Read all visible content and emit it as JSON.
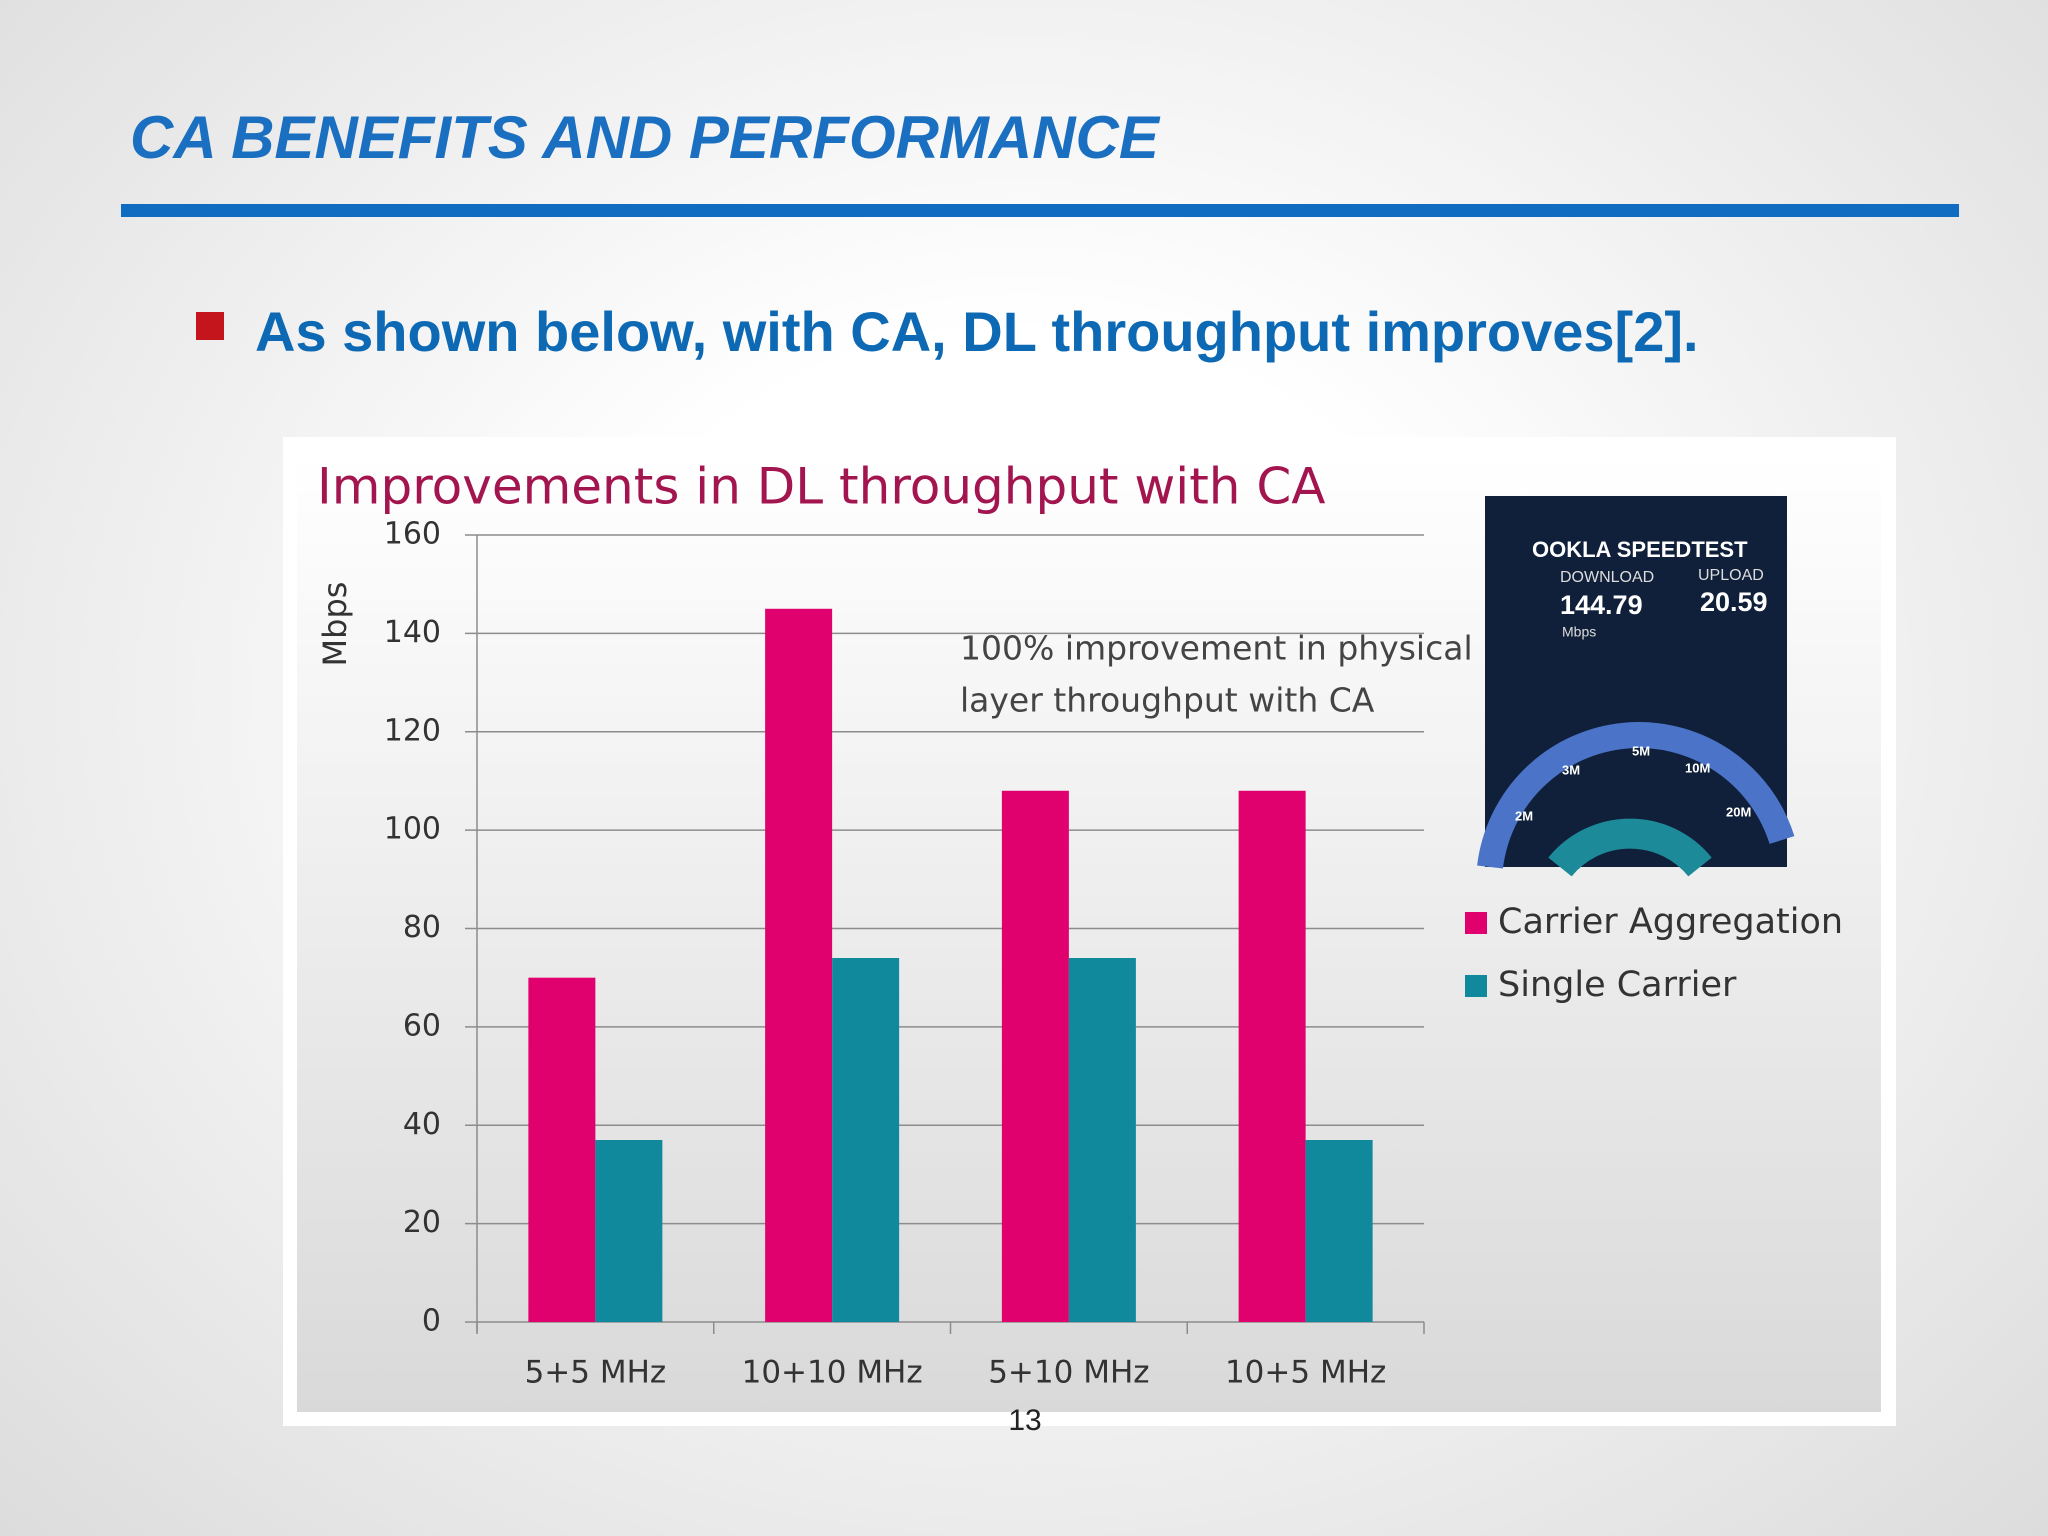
{
  "slide": {
    "title": "CA BENEFITS AND PERFORMANCE",
    "bullet": "As shown below, with CA, DL throughput improves[2].",
    "page_number": "13"
  },
  "speedtest_inset": {
    "brand": "OOKLA SPEEDTEST",
    "download_label": "DOWNLOAD",
    "upload_label": "UPLOAD",
    "download_value": "144.79",
    "upload_value": "20.59",
    "unit": "Mbps",
    "gauge_labels": [
      "2M",
      "3M",
      "5M",
      "10M",
      "20M"
    ]
  },
  "chart_data": {
    "type": "bar",
    "title": "Improvements in DL throughput with CA",
    "y_label": "Mbps",
    "annotation": [
      "100% improvement in physical",
      "layer throughput with CA"
    ],
    "categories": [
      "5+5 MHz",
      "10+10 MHz",
      "5+10 MHz",
      "10+5 MHz"
    ],
    "series": [
      {
        "name": "Carrier Aggregation",
        "color": "#e0006e",
        "values": [
          70,
          145,
          108,
          108
        ]
      },
      {
        "name": "Single Carrier",
        "color": "#10899c",
        "values": [
          37,
          74,
          74,
          37
        ]
      }
    ],
    "ylim": [
      0,
      160
    ],
    "yticks": [
      0,
      20,
      40,
      60,
      80,
      100,
      120,
      140,
      160
    ],
    "grid": true,
    "legend": "right"
  }
}
